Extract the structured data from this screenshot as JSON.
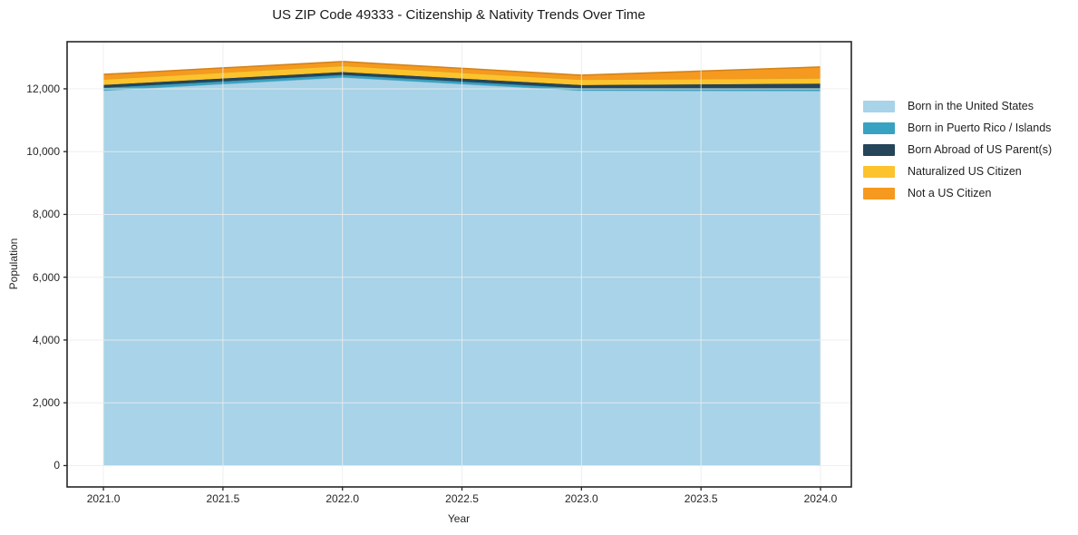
{
  "chart_data": {
    "type": "area",
    "stacked": true,
    "title": "US ZIP Code 49333 - Citizenship & Nativity Trends Over Time",
    "xlabel": "Year",
    "ylabel": "Population",
    "x": [
      2021,
      2022,
      2023,
      2024
    ],
    "series": [
      {
        "name": "Born in the United States",
        "color": "#a8d3e8",
        "values": [
          11950,
          12370,
          11950,
          11940
        ]
      },
      {
        "name": "Born in Puerto Rico / Islands",
        "color": "#38a2c2",
        "values": [
          90,
          80,
          75,
          85
        ]
      },
      {
        "name": "Born Abroad of US Parent(s)",
        "color": "#24455a",
        "values": [
          90,
          90,
          100,
          145
        ]
      },
      {
        "name": "Naturalized US Citizen",
        "color": "#fcc32d",
        "values": [
          180,
          200,
          175,
          175
        ]
      },
      {
        "name": "Not a US Citizen",
        "color": "#f6991f",
        "values": [
          150,
          130,
          135,
          350
        ]
      }
    ],
    "xlim": [
      2020.848,
      2024.129
    ],
    "ylim": [
      -680,
      13500
    ],
    "xticks": [
      2021.0,
      2021.5,
      2022.0,
      2022.5,
      2023.0,
      2023.5,
      2024.0
    ],
    "xtick_labels": [
      "2021.0",
      "2021.5",
      "2022.0",
      "2022.5",
      "2023.0",
      "2023.5",
      "2024.0"
    ],
    "yticks": [
      0,
      2000,
      4000,
      6000,
      8000,
      10000,
      12000
    ],
    "ytick_labels": [
      "0",
      "2,000",
      "4,000",
      "6,000",
      "8,000",
      "10,000",
      "12,000"
    ],
    "grid": true,
    "grid_color": "#ececec",
    "spine_color": "#262626",
    "legend_position": "outside-right"
  }
}
